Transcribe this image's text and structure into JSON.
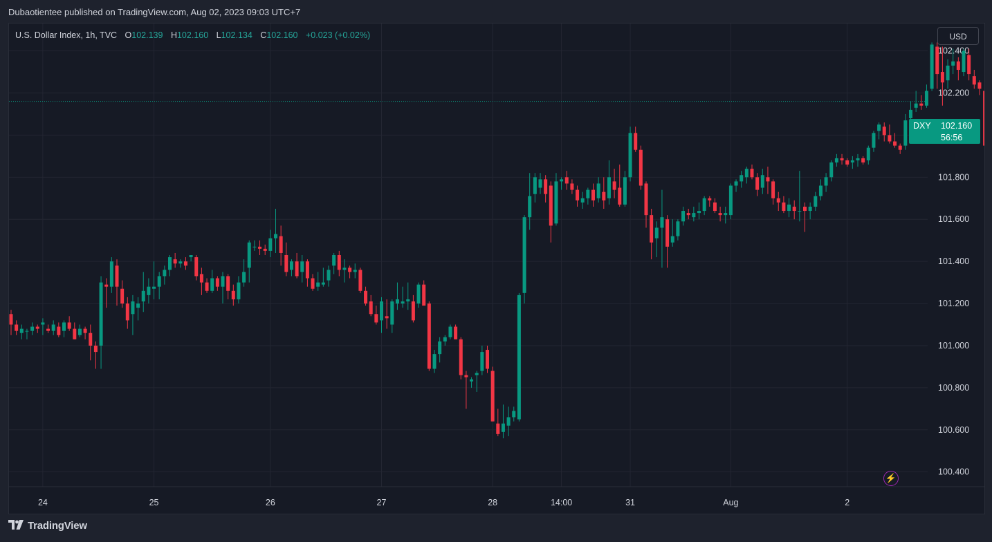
{
  "header": {
    "published_line": "Dubaotientee published on TradingView.com, Aug 02, 2023 09:03 UTC+7"
  },
  "legend": {
    "title": "U.S. Dollar Index, 1h, TVC",
    "o_label": "O",
    "o_value": "102.139",
    "h_label": "H",
    "h_value": "102.160",
    "l_label": "L",
    "l_value": "102.134",
    "c_label": "C",
    "c_value": "102.160",
    "change": "+0.023 (+0.02%)"
  },
  "currency_button": "USD",
  "price_tag": {
    "symbol": "DXY",
    "price": "102.160",
    "countdown": "56:56"
  },
  "footer": {
    "brand": "TradingView"
  },
  "colors": {
    "up": "#089981",
    "down": "#f23645",
    "grid": "#232632",
    "text": "#d1d4dc",
    "background": "#161a25",
    "last_price_line": "#089981"
  },
  "icons": {
    "alert": "lightning-bolt-icon",
    "brand": "tradingview-logo-icon"
  },
  "chart_data": {
    "type": "candlestick",
    "title": "U.S. Dollar Index, 1h, TVC",
    "ylabel": "USD",
    "ylim": [
      100.33,
      102.53
    ],
    "y_ticks": [
      "102.400",
      "102.200",
      "102.000",
      "101.800",
      "101.600",
      "101.400",
      "101.200",
      "101.000",
      "100.800",
      "100.600",
      "100.400"
    ],
    "last_price": 102.16,
    "x_ticks": [
      {
        "label": "24",
        "index": 6
      },
      {
        "label": "25",
        "index": 27
      },
      {
        "label": "26",
        "index": 49
      },
      {
        "label": "27",
        "index": 70
      },
      {
        "label": "28",
        "index": 91
      },
      {
        "label": "14:00",
        "index": 104
      },
      {
        "label": "31",
        "index": 117
      },
      {
        "label": "Aug",
        "index": 136
      },
      {
        "label": "2",
        "index": 158
      }
    ],
    "candles": [
      [
        101.15,
        101.17,
        101.05,
        101.1
      ],
      [
        101.1,
        101.12,
        101.05,
        101.07
      ],
      [
        101.06,
        101.1,
        101.03,
        101.08
      ],
      [
        101.07,
        101.08,
        101.03,
        101.07
      ],
      [
        101.07,
        101.11,
        101.05,
        101.09
      ],
      [
        101.09,
        101.1,
        101.06,
        101.08
      ],
      [
        101.1,
        101.13,
        101.05,
        101.11
      ],
      [
        101.08,
        101.1,
        101.06,
        101.07
      ],
      [
        101.07,
        101.12,
        101.05,
        101.1
      ],
      [
        101.09,
        101.11,
        101.04,
        101.05
      ],
      [
        101.07,
        101.12,
        101.04,
        101.11
      ],
      [
        101.11,
        101.14,
        101.07,
        101.08
      ],
      [
        101.08,
        101.11,
        101.03,
        101.03
      ],
      [
        101.05,
        101.1,
        101.04,
        101.08
      ],
      [
        101.08,
        101.09,
        101.03,
        101.06
      ],
      [
        101.06,
        101.1,
        100.93,
        101.0
      ],
      [
        101.0,
        101.02,
        100.89,
        100.97
      ],
      [
        101.0,
        101.33,
        100.89,
        101.3
      ],
      [
        101.29,
        101.32,
        101.18,
        101.28
      ],
      [
        101.28,
        101.42,
        101.25,
        101.4
      ],
      [
        101.38,
        101.41,
        101.19,
        101.28
      ],
      [
        101.27,
        101.31,
        101.18,
        101.2
      ],
      [
        101.2,
        101.23,
        101.08,
        101.12
      ],
      [
        101.15,
        101.24,
        101.05,
        101.21
      ],
      [
        101.18,
        101.23,
        101.12,
        101.2
      ],
      [
        101.21,
        101.35,
        101.16,
        101.26
      ],
      [
        101.24,
        101.32,
        101.2,
        101.28
      ],
      [
        101.27,
        101.4,
        101.22,
        101.28
      ],
      [
        101.28,
        101.35,
        101.22,
        101.33
      ],
      [
        101.33,
        101.38,
        101.29,
        101.36
      ],
      [
        101.36,
        101.43,
        101.33,
        101.42
      ],
      [
        101.41,
        101.44,
        101.37,
        101.39
      ],
      [
        101.39,
        101.41,
        101.37,
        101.4
      ],
      [
        101.4,
        101.42,
        101.36,
        101.38
      ],
      [
        101.42,
        101.43,
        101.4,
        101.43
      ],
      [
        101.42,
        101.43,
        101.31,
        101.33
      ],
      [
        101.34,
        101.37,
        101.24,
        101.3
      ],
      [
        101.3,
        101.32,
        101.25,
        101.26
      ],
      [
        101.26,
        101.36,
        101.25,
        101.32
      ],
      [
        101.32,
        101.33,
        101.26,
        101.28
      ],
      [
        101.28,
        101.35,
        101.2,
        101.33
      ],
      [
        101.33,
        101.34,
        101.22,
        101.26
      ],
      [
        101.26,
        101.29,
        101.19,
        101.22
      ],
      [
        101.22,
        101.33,
        101.2,
        101.3
      ],
      [
        101.3,
        101.41,
        101.28,
        101.35
      ],
      [
        101.37,
        101.5,
        101.3,
        101.49
      ],
      [
        101.47,
        101.5,
        101.45,
        101.47
      ],
      [
        101.47,
        101.5,
        101.43,
        101.46
      ],
      [
        101.46,
        101.48,
        101.43,
        101.45
      ],
      [
        101.45,
        101.55,
        101.42,
        101.51
      ],
      [
        101.51,
        101.65,
        101.44,
        101.53
      ],
      [
        101.52,
        101.57,
        101.38,
        101.44
      ],
      [
        101.43,
        101.49,
        101.33,
        101.35
      ],
      [
        101.36,
        101.41,
        101.33,
        101.4
      ],
      [
        101.4,
        101.44,
        101.32,
        101.33
      ],
      [
        101.35,
        101.43,
        101.3,
        101.4
      ],
      [
        101.4,
        101.41,
        101.28,
        101.32
      ],
      [
        101.32,
        101.34,
        101.26,
        101.27
      ],
      [
        101.28,
        101.35,
        101.26,
        101.3
      ],
      [
        101.29,
        101.37,
        101.28,
        101.3
      ],
      [
        101.31,
        101.38,
        101.28,
        101.36
      ],
      [
        101.38,
        101.44,
        101.34,
        101.43
      ],
      [
        101.43,
        101.45,
        101.33,
        101.36
      ],
      [
        101.36,
        101.41,
        101.3,
        101.37
      ],
      [
        101.37,
        101.38,
        101.32,
        101.35
      ],
      [
        101.35,
        101.39,
        101.32,
        101.36
      ],
      [
        101.36,
        101.37,
        101.25,
        101.26
      ],
      [
        101.26,
        101.28,
        101.19,
        101.2
      ],
      [
        101.21,
        101.24,
        101.14,
        101.15
      ],
      [
        101.15,
        101.19,
        101.1,
        101.11
      ],
      [
        101.12,
        101.23,
        101.06,
        101.21
      ],
      [
        101.14,
        101.22,
        101.08,
        101.13
      ],
      [
        101.1,
        101.22,
        101.06,
        101.21
      ],
      [
        101.2,
        101.3,
        101.17,
        101.22
      ],
      [
        101.2,
        101.28,
        101.18,
        101.21
      ],
      [
        101.21,
        101.3,
        101.17,
        101.22
      ],
      [
        101.21,
        101.24,
        101.11,
        101.12
      ],
      [
        101.2,
        101.3,
        101.18,
        101.29
      ],
      [
        101.29,
        101.31,
        101.2,
        101.19
      ],
      [
        101.2,
        101.21,
        100.88,
        100.89
      ],
      [
        100.89,
        100.98,
        100.87,
        100.96
      ],
      [
        100.96,
        101.04,
        100.92,
        101.02
      ],
      [
        101.02,
        101.05,
        101.0,
        101.04
      ],
      [
        101.04,
        101.1,
        101.03,
        101.09
      ],
      [
        101.09,
        101.1,
        101.03,
        101.03
      ],
      [
        101.03,
        101.04,
        100.84,
        100.86
      ],
      [
        100.86,
        100.88,
        100.7,
        100.85
      ],
      [
        100.83,
        100.85,
        100.8,
        100.84
      ],
      [
        100.86,
        100.88,
        100.78,
        100.87
      ],
      [
        100.88,
        101.0,
        100.86,
        100.97
      ],
      [
        100.98,
        101.0,
        100.87,
        100.89
      ],
      [
        100.88,
        100.9,
        100.64,
        100.64
      ],
      [
        100.63,
        100.7,
        100.57,
        100.58
      ],
      [
        100.59,
        100.72,
        100.56,
        100.63
      ],
      [
        100.62,
        100.71,
        100.57,
        100.66
      ],
      [
        100.66,
        100.71,
        100.64,
        100.69
      ],
      [
        100.65,
        101.25,
        100.64,
        101.24
      ],
      [
        101.25,
        101.62,
        101.2,
        101.61
      ],
      [
        101.61,
        101.82,
        101.55,
        101.71
      ],
      [
        101.72,
        101.82,
        101.68,
        101.8
      ],
      [
        101.75,
        101.82,
        101.72,
        101.79
      ],
      [
        101.79,
        101.81,
        101.68,
        101.72
      ],
      [
        101.76,
        101.78,
        101.49,
        101.57
      ],
      [
        101.58,
        101.82,
        101.57,
        101.78
      ],
      [
        101.78,
        101.8,
        101.74,
        101.79
      ],
      [
        101.8,
        101.83,
        101.74,
        101.77
      ],
      [
        101.77,
        101.79,
        101.72,
        101.74
      ],
      [
        101.74,
        101.76,
        101.66,
        101.69
      ],
      [
        101.68,
        101.73,
        101.65,
        101.7
      ],
      [
        101.7,
        101.75,
        101.67,
        101.74
      ],
      [
        101.74,
        101.77,
        101.66,
        101.69
      ],
      [
        101.7,
        101.8,
        101.68,
        101.77
      ],
      [
        101.73,
        101.8,
        101.65,
        101.69
      ],
      [
        101.7,
        101.88,
        101.67,
        101.8
      ],
      [
        101.78,
        101.84,
        101.7,
        101.74
      ],
      [
        101.75,
        101.86,
        101.66,
        101.67
      ],
      [
        101.67,
        101.83,
        101.66,
        101.8
      ],
      [
        101.8,
        102.04,
        101.78,
        102.01
      ],
      [
        102.01,
        102.04,
        101.92,
        101.93
      ],
      [
        101.93,
        101.95,
        101.74,
        101.76
      ],
      [
        101.77,
        101.78,
        101.56,
        101.62
      ],
      [
        101.62,
        101.65,
        101.41,
        101.49
      ],
      [
        101.51,
        101.59,
        101.42,
        101.56
      ],
      [
        101.56,
        101.74,
        101.37,
        101.61
      ],
      [
        101.6,
        101.62,
        101.37,
        101.47
      ],
      [
        101.49,
        101.6,
        101.47,
        101.52
      ],
      [
        101.52,
        101.6,
        101.5,
        101.59
      ],
      [
        101.59,
        101.66,
        101.57,
        101.64
      ],
      [
        101.63,
        101.65,
        101.6,
        101.62
      ],
      [
        101.61,
        101.66,
        101.59,
        101.63
      ],
      [
        101.63,
        101.68,
        101.6,
        101.64
      ],
      [
        101.64,
        101.71,
        101.62,
        101.7
      ],
      [
        101.7,
        101.71,
        101.66,
        101.69
      ],
      [
        101.68,
        101.7,
        101.63,
        101.64
      ],
      [
        101.63,
        101.66,
        101.59,
        101.62
      ],
      [
        101.62,
        101.66,
        101.58,
        101.63
      ],
      [
        101.62,
        101.77,
        101.6,
        101.76
      ],
      [
        101.76,
        101.79,
        101.73,
        101.78
      ],
      [
        101.78,
        101.83,
        101.75,
        101.81
      ],
      [
        101.8,
        101.85,
        101.77,
        101.84
      ],
      [
        101.84,
        101.86,
        101.79,
        101.8
      ],
      [
        101.8,
        101.82,
        101.71,
        101.74
      ],
      [
        101.75,
        101.84,
        101.72,
        101.81
      ],
      [
        101.8,
        101.85,
        101.72,
        101.78
      ],
      [
        101.78,
        101.79,
        101.67,
        101.7
      ],
      [
        101.7,
        101.73,
        101.64,
        101.68
      ],
      [
        101.68,
        101.71,
        101.63,
        101.64
      ],
      [
        101.64,
        101.7,
        101.61,
        101.67
      ],
      [
        101.66,
        101.69,
        101.6,
        101.64
      ],
      [
        101.64,
        101.83,
        101.59,
        101.64
      ],
      [
        101.66,
        101.68,
        101.54,
        101.64
      ],
      [
        101.64,
        101.68,
        101.6,
        101.66
      ],
      [
        101.66,
        101.73,
        101.64,
        101.71
      ],
      [
        101.71,
        101.79,
        101.69,
        101.76
      ],
      [
        101.76,
        101.82,
        101.73,
        101.8
      ],
      [
        101.8,
        101.88,
        101.78,
        101.87
      ],
      [
        101.87,
        101.91,
        101.85,
        101.89
      ],
      [
        101.89,
        101.91,
        101.86,
        101.88
      ],
      [
        101.88,
        101.89,
        101.85,
        101.86
      ],
      [
        101.87,
        101.9,
        101.84,
        101.88
      ],
      [
        101.88,
        101.91,
        101.85,
        101.89
      ],
      [
        101.89,
        101.9,
        101.86,
        101.87
      ],
      [
        101.88,
        101.95,
        101.86,
        101.94
      ],
      [
        101.94,
        102.02,
        101.92,
        102.01
      ],
      [
        102.02,
        102.06,
        101.98,
        102.05
      ],
      [
        102.04,
        102.06,
        101.97,
        102.0
      ],
      [
        102.0,
        102.05,
        101.96,
        101.97
      ],
      [
        101.97,
        102.01,
        101.94,
        101.95
      ],
      [
        101.95,
        101.96,
        101.91,
        101.93
      ],
      [
        101.95,
        102.1,
        101.93,
        102.07
      ],
      [
        102.08,
        102.16,
        102.03,
        102.12
      ],
      [
        102.13,
        102.21,
        102.11,
        102.15
      ],
      [
        102.15,
        102.19,
        102.12,
        102.14
      ],
      [
        102.14,
        102.24,
        102.13,
        102.21
      ],
      [
        102.22,
        102.44,
        102.21,
        102.43
      ],
      [
        102.42,
        102.44,
        102.22,
        102.29
      ],
      [
        102.3,
        102.42,
        102.14,
        102.25
      ],
      [
        102.26,
        102.36,
        102.22,
        102.33
      ],
      [
        102.33,
        102.41,
        102.29,
        102.35
      ],
      [
        102.35,
        102.37,
        102.26,
        102.31
      ],
      [
        102.3,
        102.41,
        102.28,
        102.4
      ],
      [
        102.38,
        102.41,
        102.26,
        102.29
      ],
      [
        102.28,
        102.31,
        102.22,
        102.24
      ],
      [
        102.25,
        102.26,
        102.19,
        102.22
      ],
      [
        102.21,
        102.24,
        101.95,
        101.95
      ],
      [
        101.95,
        102.01,
        101.94,
        101.96
      ],
      [
        101.96,
        102.02,
        101.95,
        102.01
      ],
      [
        102.01,
        102.11,
        102.0,
        102.1
      ],
      [
        102.1,
        102.14,
        102.09,
        102.13
      ],
      [
        102.14,
        102.16,
        102.13,
        102.16
      ]
    ]
  }
}
